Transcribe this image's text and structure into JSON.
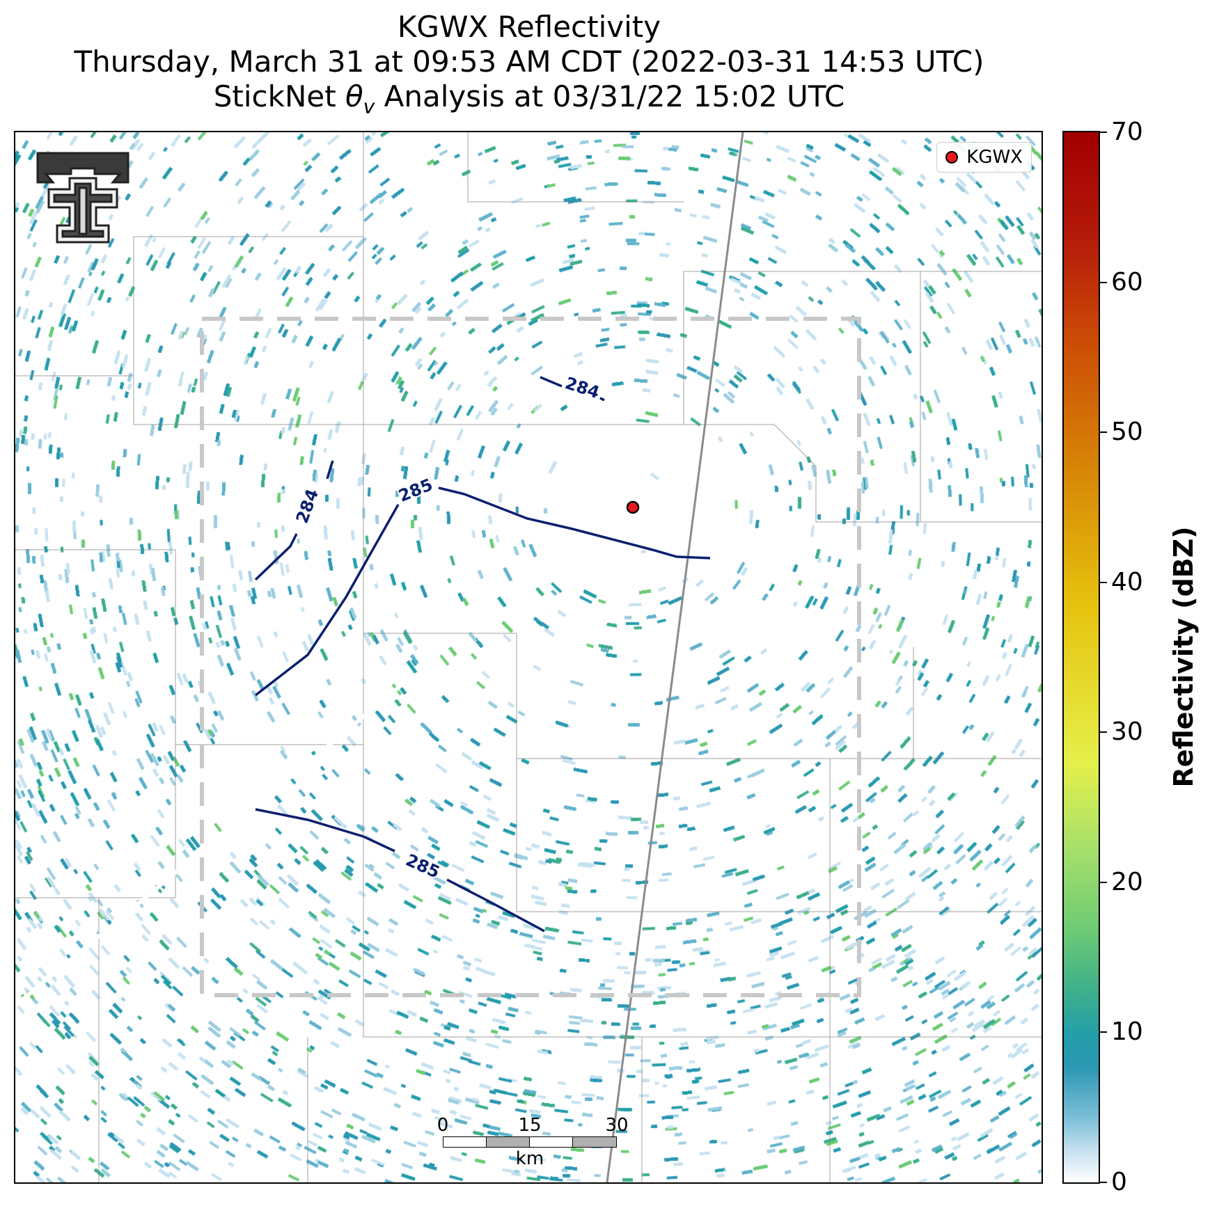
{
  "title": {
    "line1": "KGWX Reflectivity",
    "line2": "Thursday, March 31 at 09:53 AM CDT (2022-03-31 14:53 UTC)",
    "line3_pre": "StickNet ",
    "line3_symbol": "θ",
    "line3_subscript": "v",
    "line3_post": " Analysis at 03/31/22 15:02 UTC"
  },
  "legend": {
    "label": "KGWX",
    "marker_color": "#e41a1c"
  },
  "colorbar": {
    "label": "Reflectivity (dBZ)",
    "ticks": [
      "0",
      "10",
      "20",
      "30",
      "40",
      "50",
      "60",
      "70"
    ],
    "range": [
      0,
      70
    ]
  },
  "scalebar": {
    "ticks": [
      "0",
      "15",
      "30"
    ],
    "unit": "km"
  },
  "contours": {
    "labels": [
      "284",
      "285",
      "284",
      "285"
    ],
    "color": "#0b1f6e"
  },
  "colors": {
    "reflectivity_low": "#2b98b3",
    "reflectivity_mid": "#6ccb74",
    "analysis_box": "#c8c8c8",
    "highway": "#8a8a8a"
  },
  "icons": {
    "logo": "texas-tech-double-t-logo",
    "radar_site": "red-dot-marker"
  }
}
